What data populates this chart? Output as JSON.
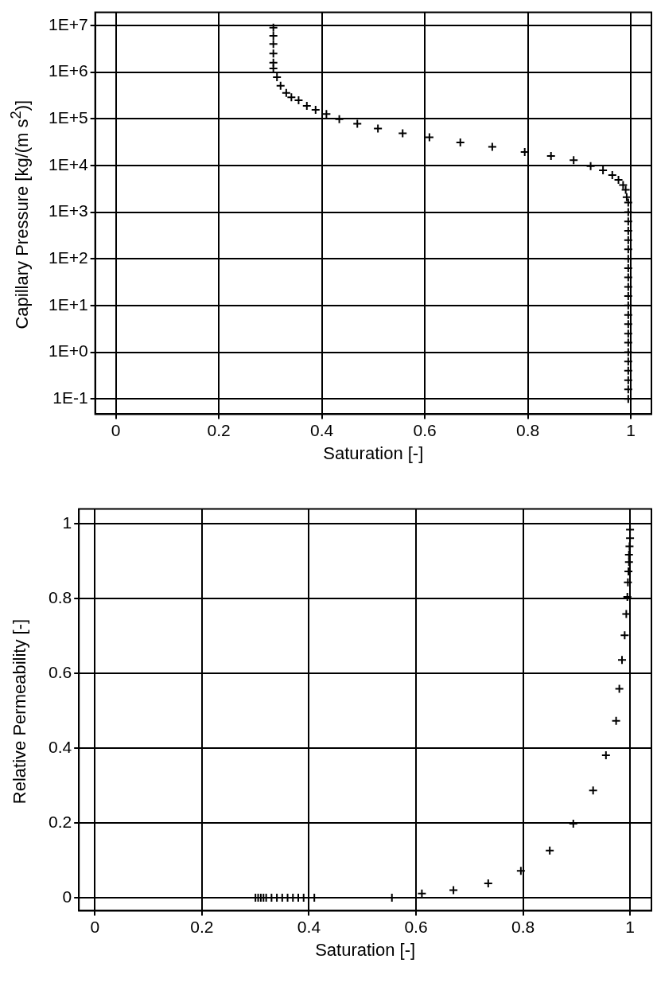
{
  "chart_data": [
    {
      "type": "scatter",
      "xlabel": "Saturation [-]",
      "ylabel": "Capillary Pressure [kg/(m s$^{2}$)]",
      "log": "y",
      "grid": true,
      "marker": "cross",
      "x": [
        0.306,
        0.306,
        0.306,
        0.306,
        0.306,
        0.306,
        0.313,
        0.32,
        0.331,
        0.341,
        0.355,
        0.371,
        0.388,
        0.409,
        0.434,
        0.469,
        0.509,
        0.557,
        0.609,
        0.669,
        0.731,
        0.794,
        0.845,
        0.889,
        0.922,
        0.946,
        0.964,
        0.976,
        0.985,
        0.99,
        0.992,
        0.995,
        0.995,
        0.995,
        0.995,
        0.995,
        0.995,
        0.995,
        0.995,
        0.995,
        0.995,
        0.995,
        0.995,
        0.995,
        0.995,
        0.995,
        0.995,
        0.995,
        0.995,
        0.995,
        0.995,
        0.995,
        0.995
      ],
      "values": [
        9000000,
        6000000,
        4000000,
        2500000,
        1600000,
        1200000,
        780000,
        510000,
        360000,
        290000,
        250000,
        190000,
        155000,
        126000,
        98000,
        78000,
        62000,
        49000,
        40000,
        31000,
        25000,
        19500,
        16000,
        13000,
        9700,
        7900,
        6200,
        4900,
        3800,
        3000,
        2100,
        1600,
        1000,
        630,
        400,
        250,
        160,
        100,
        63,
        40,
        25,
        16,
        10,
        6.3,
        4,
        2.5,
        1.6,
        1,
        0.63,
        0.4,
        0.25,
        0.16,
        0.1
      ],
      "color": "#000000",
      "xlim": [
        -0.04,
        1.04
      ],
      "xticks": [
        0,
        0.2,
        0.4,
        0.6,
        0.8,
        1
      ],
      "ylim": [
        0.047,
        19000000
      ],
      "yticks": [
        {
          "value": 0.1,
          "label": "1E-1"
        },
        {
          "value": 1,
          "label": "1E+0"
        },
        {
          "value": 10,
          "label": "1E+1"
        },
        {
          "value": 100,
          "label": "1E+2"
        },
        {
          "value": 1000,
          "label": "1E+3"
        },
        {
          "value": 10000,
          "label": "1E+4"
        },
        {
          "value": 100000,
          "label": "1E+5"
        },
        {
          "value": 1000000,
          "label": "1E+6"
        },
        {
          "value": 10000000,
          "label": "1E+7"
        }
      ]
    },
    {
      "type": "scatter",
      "xlabel": "Saturation [-]",
      "ylabel": "Relative Permeability [-]",
      "grid": true,
      "marker": "cross",
      "x": [
        0.3,
        0.305,
        0.31,
        0.315,
        0.32,
        0.33,
        0.34,
        0.35,
        0.36,
        0.37,
        0.38,
        0.39,
        0.41,
        0.555,
        0.611,
        0.67,
        0.735,
        0.796,
        0.85,
        0.894,
        0.931,
        0.955,
        0.974,
        0.98,
        0.985,
        0.99,
        0.993,
        0.995,
        0.996,
        0.997,
        0.998,
        0.998,
        0.999,
        1,
        1
      ],
      "values": [
        0,
        0,
        0,
        0,
        0,
        0,
        0,
        0,
        0,
        0,
        0,
        0,
        0,
        0,
        0.011,
        0.02,
        0.038,
        0.072,
        0.126,
        0.198,
        0.287,
        0.381,
        0.473,
        0.559,
        0.636,
        0.702,
        0.759,
        0.805,
        0.844,
        0.873,
        0.898,
        0.918,
        0.94,
        0.962,
        0.985
      ],
      "color": "#000000",
      "xlim": [
        -0.03,
        1.04
      ],
      "xticks": [
        0,
        0.2,
        0.4,
        0.6,
        0.8,
        1
      ],
      "ylim": [
        -0.035,
        1.04
      ],
      "yticks": [
        0,
        0.2,
        0.4,
        0.6,
        0.8,
        1
      ]
    }
  ]
}
